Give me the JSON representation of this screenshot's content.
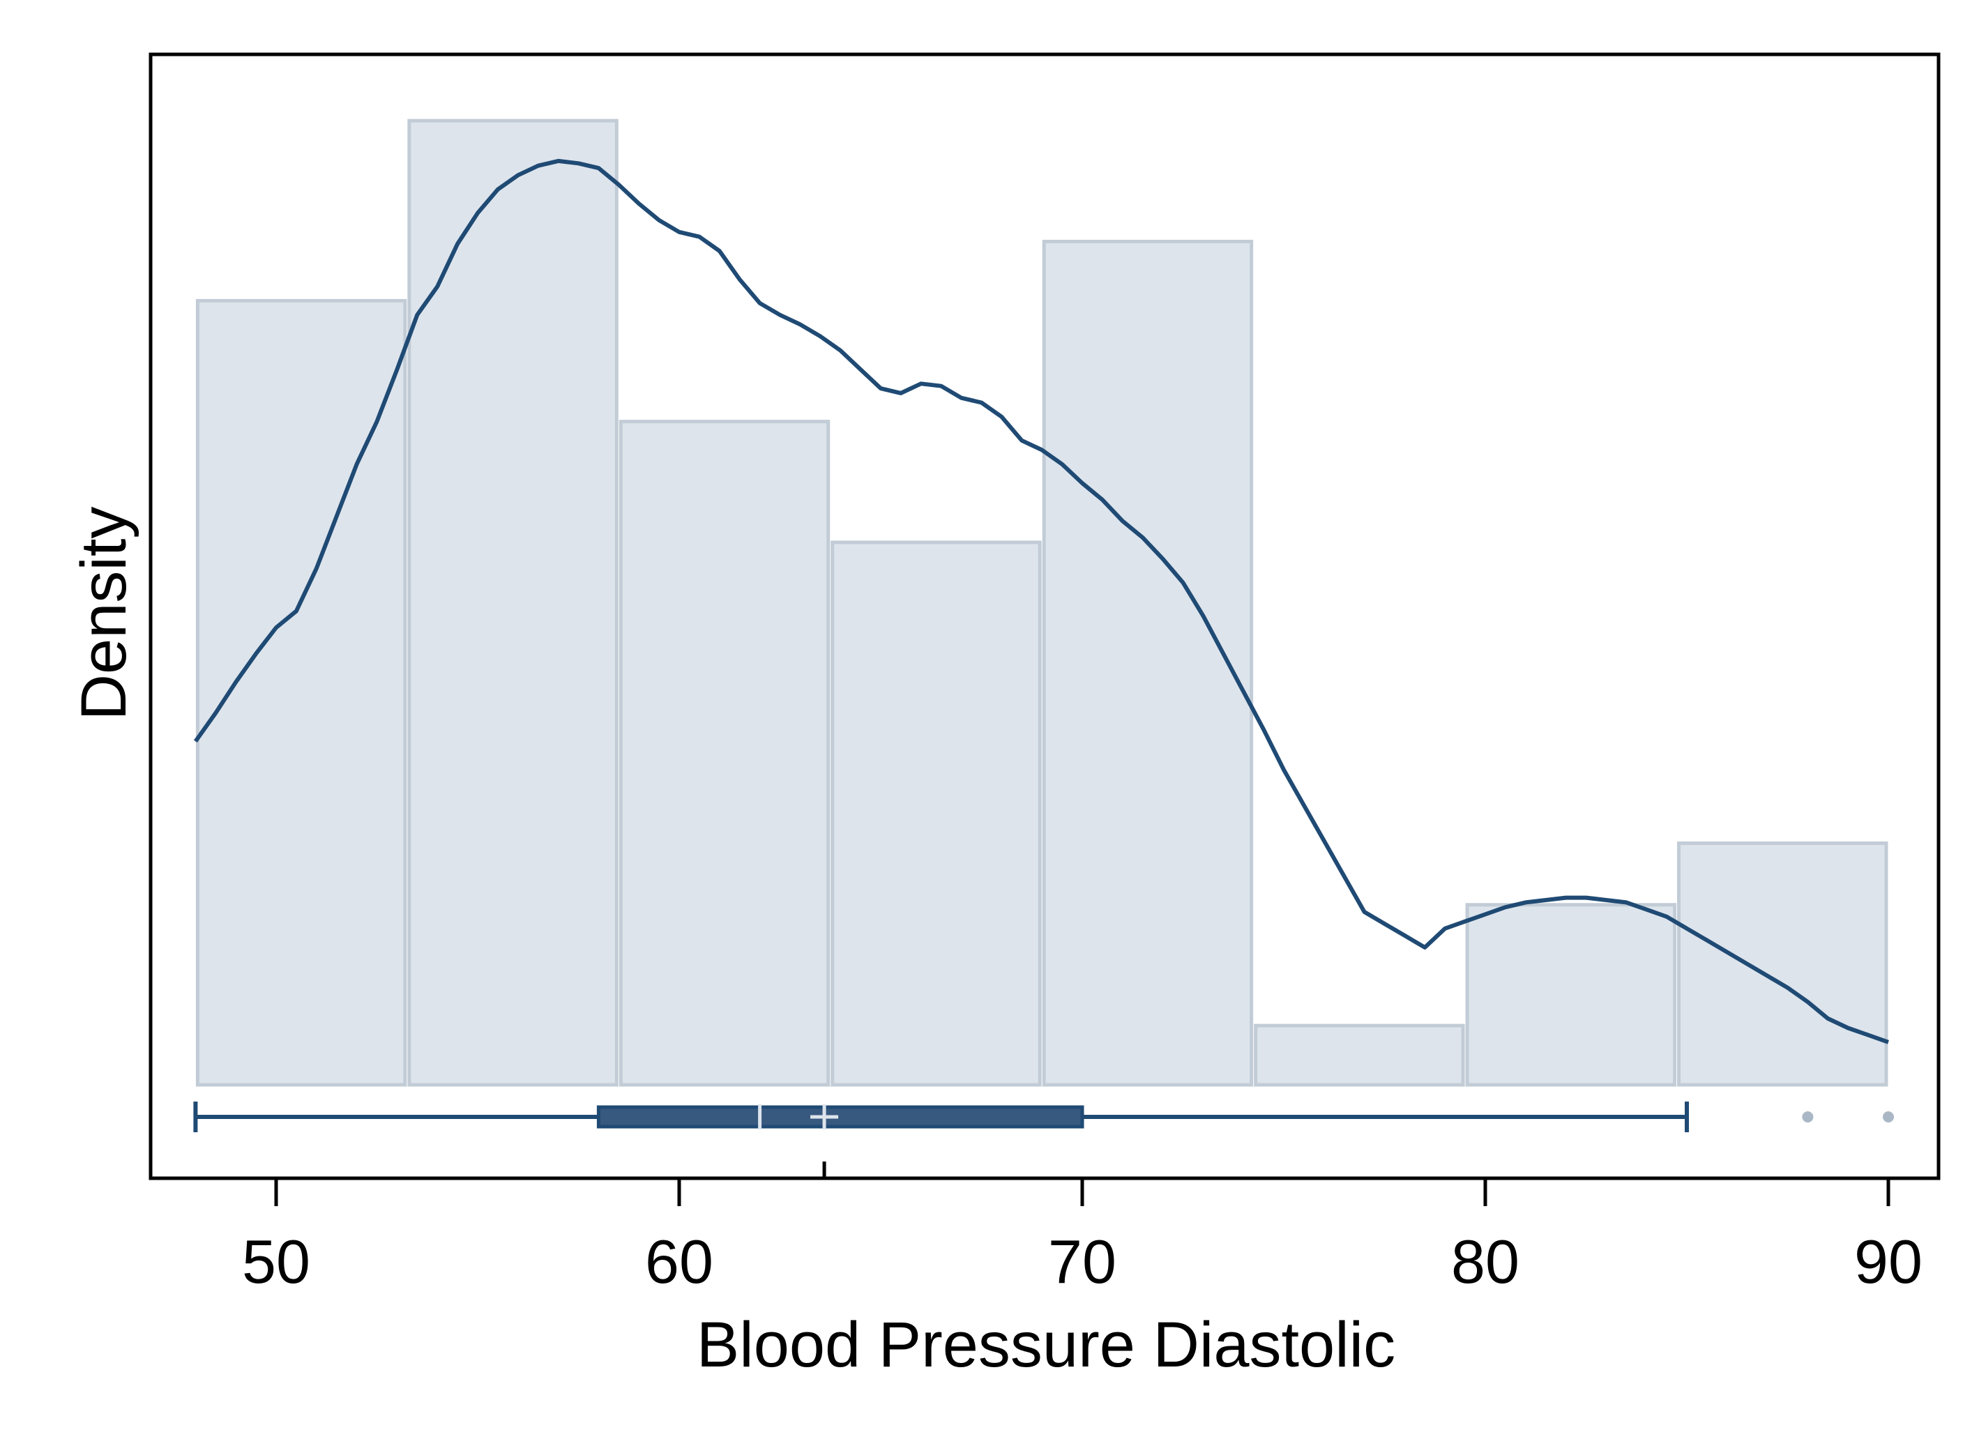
{
  "chart_data": {
    "type": "histogram",
    "xlabel": "Blood Pressure Diastolic",
    "ylabel": "Density",
    "xlim": [
      47,
      91.5
    ],
    "ylim": [
      0,
      0.0435
    ],
    "x_ticks": [
      {
        "value": 50,
        "label": "50"
      },
      {
        "value": 60,
        "label": "60"
      },
      {
        "value": 70,
        "label": "70"
      },
      {
        "value": 80,
        "label": "80"
      },
      {
        "value": 90,
        "label": "90"
      }
    ],
    "y_ticks_shown": false,
    "grid": false,
    "histogram": {
      "bins": [
        {
          "x0": 48.0,
          "x1": 53.25,
          "density": 0.0331
        },
        {
          "x0": 53.25,
          "x1": 58.5,
          "density": 0.0407
        },
        {
          "x0": 58.5,
          "x1": 63.75,
          "density": 0.028
        },
        {
          "x0": 63.75,
          "x1": 69.0,
          "density": 0.0229
        },
        {
          "x0": 69.0,
          "x1": 74.25,
          "density": 0.0356
        },
        {
          "x0": 74.25,
          "x1": 79.5,
          "density": 0.0025
        },
        {
          "x0": 79.5,
          "x1": 84.75,
          "density": 0.0076
        },
        {
          "x0": 84.75,
          "x1": 90.0,
          "density": 0.0102
        }
      ]
    },
    "density_curve": {
      "x": [
        48.0,
        48.5,
        49.0,
        49.5,
        50.0,
        50.5,
        51.0,
        51.5,
        52.0,
        52.5,
        53.0,
        53.5,
        54.0,
        54.5,
        55.0,
        55.5,
        56.0,
        56.5,
        57.0,
        57.5,
        58.0,
        58.5,
        59.0,
        59.5,
        60.0,
        60.5,
        61.0,
        61.5,
        62.0,
        62.5,
        63.0,
        63.5,
        64.0,
        64.5,
        65.0,
        65.5,
        66.0,
        66.5,
        67.0,
        67.5,
        68.0,
        68.5,
        69.0,
        69.5,
        70.0,
        70.5,
        71.0,
        71.5,
        72.0,
        72.5,
        73.0,
        73.5,
        74.0,
        74.5,
        75.0,
        75.5,
        76.0,
        76.5,
        77.0,
        77.5,
        78.0,
        78.5,
        79.0,
        79.5,
        80.0,
        80.5,
        81.0,
        81.5,
        82.0,
        82.5,
        83.0,
        83.5,
        84.0,
        84.5,
        85.0,
        85.5,
        86.0,
        86.5,
        87.0,
        87.5,
        88.0,
        88.5,
        89.0,
        89.5,
        90.0
      ],
      "y": [
        0.0145,
        0.0157,
        0.017,
        0.0182,
        0.0193,
        0.02,
        0.0218,
        0.024,
        0.0262,
        0.028,
        0.0302,
        0.0325,
        0.0337,
        0.0355,
        0.0368,
        0.0378,
        0.0384,
        0.0388,
        0.039,
        0.0389,
        0.0387,
        0.038,
        0.0372,
        0.0365,
        0.036,
        0.0358,
        0.0352,
        0.034,
        0.033,
        0.0325,
        0.0321,
        0.0316,
        0.031,
        0.0302,
        0.0294,
        0.0292,
        0.0296,
        0.0295,
        0.029,
        0.0288,
        0.0282,
        0.0272,
        0.0268,
        0.0262,
        0.0254,
        0.0247,
        0.0238,
        0.0231,
        0.0222,
        0.0212,
        0.0198,
        0.0182,
        0.0166,
        0.015,
        0.0133,
        0.0118,
        0.0103,
        0.0088,
        0.0073,
        0.0068,
        0.0063,
        0.0058,
        0.0066,
        0.0069,
        0.0072,
        0.0075,
        0.0077,
        0.0078,
        0.0079,
        0.0079,
        0.0078,
        0.0077,
        0.0074,
        0.0071,
        0.0066,
        0.0061,
        0.0056,
        0.0051,
        0.0046,
        0.0041,
        0.0035,
        0.0028,
        0.0024,
        0.0021,
        0.0018
      ]
    },
    "boxplot": {
      "whisker_low": 48,
      "q1": 58,
      "median": 62,
      "mean": 63.6,
      "q3": 70,
      "whisker_high": 85,
      "outliers": [
        88,
        90
      ]
    },
    "colors": {
      "bar_fill": "#dde4ec",
      "bar_stroke": "#c2ccd6",
      "curve": "#1f4a74",
      "box_fill": "#37597f",
      "box_stroke": "#1f4a74",
      "whisker": "#1f4a74",
      "median_mark": "#dde4ec",
      "outlier": "#aab8c6",
      "frame": "#000000"
    }
  }
}
